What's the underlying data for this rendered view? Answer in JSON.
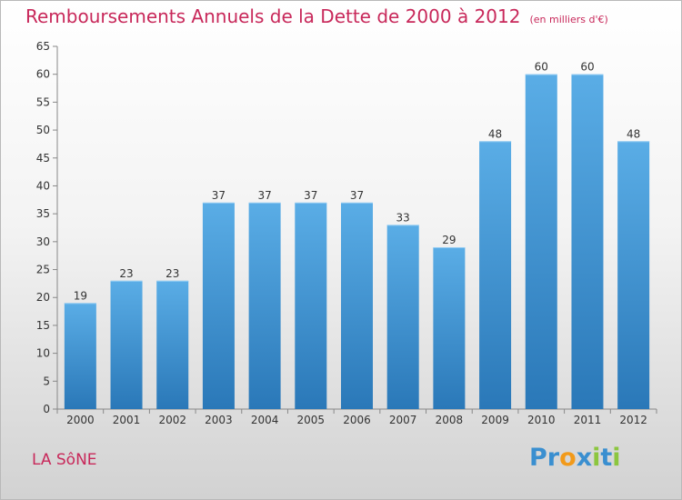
{
  "chart_data": {
    "type": "bar",
    "title": "Remboursements Annuels de la Dette de 2000 à 2012",
    "subtitle": "(en milliers d'€)",
    "categories": [
      "2000",
      "2001",
      "2002",
      "2003",
      "2004",
      "2005",
      "2006",
      "2007",
      "2008",
      "2009",
      "2010",
      "2011",
      "2012"
    ],
    "values": [
      19,
      23,
      23,
      37,
      37,
      37,
      37,
      33,
      29,
      48,
      60,
      60,
      48
    ],
    "ylim": [
      0,
      65
    ],
    "yticks": [
      0,
      5,
      10,
      15,
      20,
      25,
      30,
      35,
      40,
      45,
      50,
      55,
      60,
      65
    ],
    "xlabel": "",
    "ylabel": "",
    "grid": false,
    "bar_color_top": "#5aade6",
    "bar_color_bottom": "#2a78b8"
  },
  "commune": "LA SôNE",
  "logo": {
    "text": "Proxiti",
    "letters": [
      {
        "ch": "P",
        "color": "#3a8fd0"
      },
      {
        "ch": "r",
        "color": "#3a8fd0"
      },
      {
        "ch": "o",
        "color": "#f29a1a"
      },
      {
        "ch": "x",
        "color": "#3a8fd0"
      },
      {
        "ch": "i",
        "color": "#8cc63f"
      },
      {
        "ch": "t",
        "color": "#3a8fd0"
      },
      {
        "ch": "i",
        "color": "#8cc63f"
      }
    ]
  }
}
